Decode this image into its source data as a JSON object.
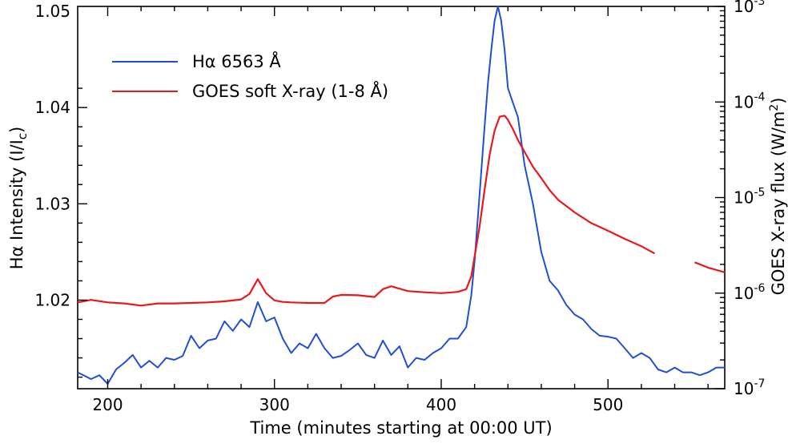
{
  "chart_data": {
    "type": "line",
    "xlabel": "Time (minutes starting at 00:00 UT)",
    "ylabel_left": "Hα Intensity (I/I",
    "ylabel_left_sub": "c",
    "ylabel_left_close": ")",
    "ylabel_right": "GOES X-ray flux (W/m",
    "ylabel_right_sup": "2",
    "ylabel_right_close": ")",
    "xlim": [
      182,
      570
    ],
    "ylim_left": [
      1.0108,
      1.0505
    ],
    "ylim_right": [
      1e-07,
      0.001
    ],
    "right_axis_scale": "log",
    "x_ticks": [
      "200",
      "300",
      "400",
      "500"
    ],
    "x_tick_values": [
      200,
      300,
      400,
      500
    ],
    "y_ticks_left": [
      "1.02",
      "1.03",
      "1.04",
      "1.05"
    ],
    "y_tick_values_left": [
      1.02,
      1.03,
      1.04,
      1.05
    ],
    "y_ticks_right": [
      {
        "base": "10",
        "exp": "-7",
        "value": 1e-07
      },
      {
        "base": "10",
        "exp": "-6",
        "value": 1e-06
      },
      {
        "base": "10",
        "exp": "-5",
        "value": 1e-05
      },
      {
        "base": "10",
        "exp": "-4",
        "value": 0.0001
      },
      {
        "base": "10",
        "exp": "-3",
        "value": 0.001
      }
    ],
    "legend_position": "top-left",
    "grid": false,
    "series": [
      {
        "name": "Hα 6563 Å",
        "axis": "left",
        "color": "#1f4fd6",
        "x": [
          182,
          190,
          195,
          200,
          205,
          210,
          215,
          220,
          225,
          230,
          235,
          240,
          245,
          250,
          255,
          260,
          265,
          270,
          275,
          280,
          285,
          290,
          295,
          300,
          305,
          310,
          315,
          320,
          325,
          330,
          335,
          340,
          345,
          350,
          355,
          360,
          365,
          370,
          375,
          380,
          385,
          390,
          395,
          400,
          405,
          410,
          415,
          418,
          420,
          423,
          426,
          428,
          430,
          432,
          434,
          436,
          438,
          440,
          443,
          446,
          450,
          455,
          460,
          465,
          470,
          475,
          480,
          485,
          490,
          495,
          500,
          505,
          510,
          515,
          520,
          525,
          530,
          535,
          540,
          545,
          550,
          555,
          560,
          565,
          570
        ],
        "y": [
          1.0125,
          1.0118,
          1.0122,
          1.0113,
          1.0128,
          1.0135,
          1.0143,
          1.013,
          1.0137,
          1.013,
          1.014,
          1.0138,
          1.0142,
          1.0163,
          1.015,
          1.0158,
          1.016,
          1.0178,
          1.0168,
          1.018,
          1.0172,
          1.0198,
          1.0178,
          1.0182,
          1.016,
          1.0145,
          1.0155,
          1.015,
          1.0165,
          1.015,
          1.014,
          1.0142,
          1.0148,
          1.0155,
          1.0143,
          1.014,
          1.0158,
          1.0143,
          1.0152,
          1.013,
          1.014,
          1.0138,
          1.0145,
          1.015,
          1.016,
          1.016,
          1.0172,
          1.0205,
          1.024,
          1.031,
          1.038,
          1.0425,
          1.046,
          1.049,
          1.0505,
          1.049,
          1.046,
          1.042,
          1.0405,
          1.039,
          1.034,
          1.03,
          1.025,
          1.022,
          1.021,
          1.0195,
          1.0185,
          1.018,
          1.017,
          1.0163,
          1.0162,
          1.016,
          1.015,
          1.014,
          1.0145,
          1.014,
          1.0128,
          1.0125,
          1.013,
          1.0125,
          1.0125,
          1.0122,
          1.0125,
          1.013,
          1.013
        ]
      },
      {
        "name": "GOES soft X-ray (1-8 Å)",
        "axis": "right",
        "color": "#e8191a",
        "segments": [
          {
            "x": [
              182,
              190,
              200,
              210,
              220,
              230,
              240,
              250,
              260,
              270,
              280,
              285,
              290,
              295,
              300,
              305,
              310,
              320,
              330,
              335,
              340,
              350,
              360,
              365,
              370,
              380,
              390,
              400,
              410,
              415,
              418,
              420,
              423,
              426,
              429,
              432,
              435,
              438,
              440,
              443,
              446,
              450,
              455,
              460,
              465,
              470,
              480,
              490,
              500,
              510,
              520,
              528
            ],
            "y": [
              8e-07,
              8.5e-07,
              8e-07,
              7.8e-07,
              7.4e-07,
              7.8e-07,
              7.8e-07,
              7.9e-07,
              8e-07,
              8.2e-07,
              8.6e-07,
              9.8e-07,
              1.4e-06,
              1e-06,
              8.4e-07,
              8.1e-07,
              8e-07,
              7.9e-07,
              7.9e-07,
              9.2e-07,
              9.6e-07,
              9.5e-07,
              9.1e-07,
              1.1e-06,
              1.18e-06,
              1.05e-06,
              1.02e-06,
              1e-06,
              1.03e-06,
              1.1e-06,
              1.5e-06,
              2.4e-06,
              5e-06,
              1.2e-05,
              2.8e-05,
              5e-05,
              7e-05,
              7.2e-05,
              6.5e-05,
              5.2e-05,
              4e-05,
              3e-05,
              2.1e-05,
              1.6e-05,
              1.2e-05,
              9.5e-06,
              7e-06,
              5.4e-06,
              4.5e-06,
              3.7e-06,
              3.1e-06,
              2.6e-06
            ]
          },
          {
            "x": [
              552,
              560,
              570
            ],
            "y": [
              2.1e-06,
              1.85e-06,
              1.65e-06
            ]
          }
        ]
      }
    ]
  }
}
